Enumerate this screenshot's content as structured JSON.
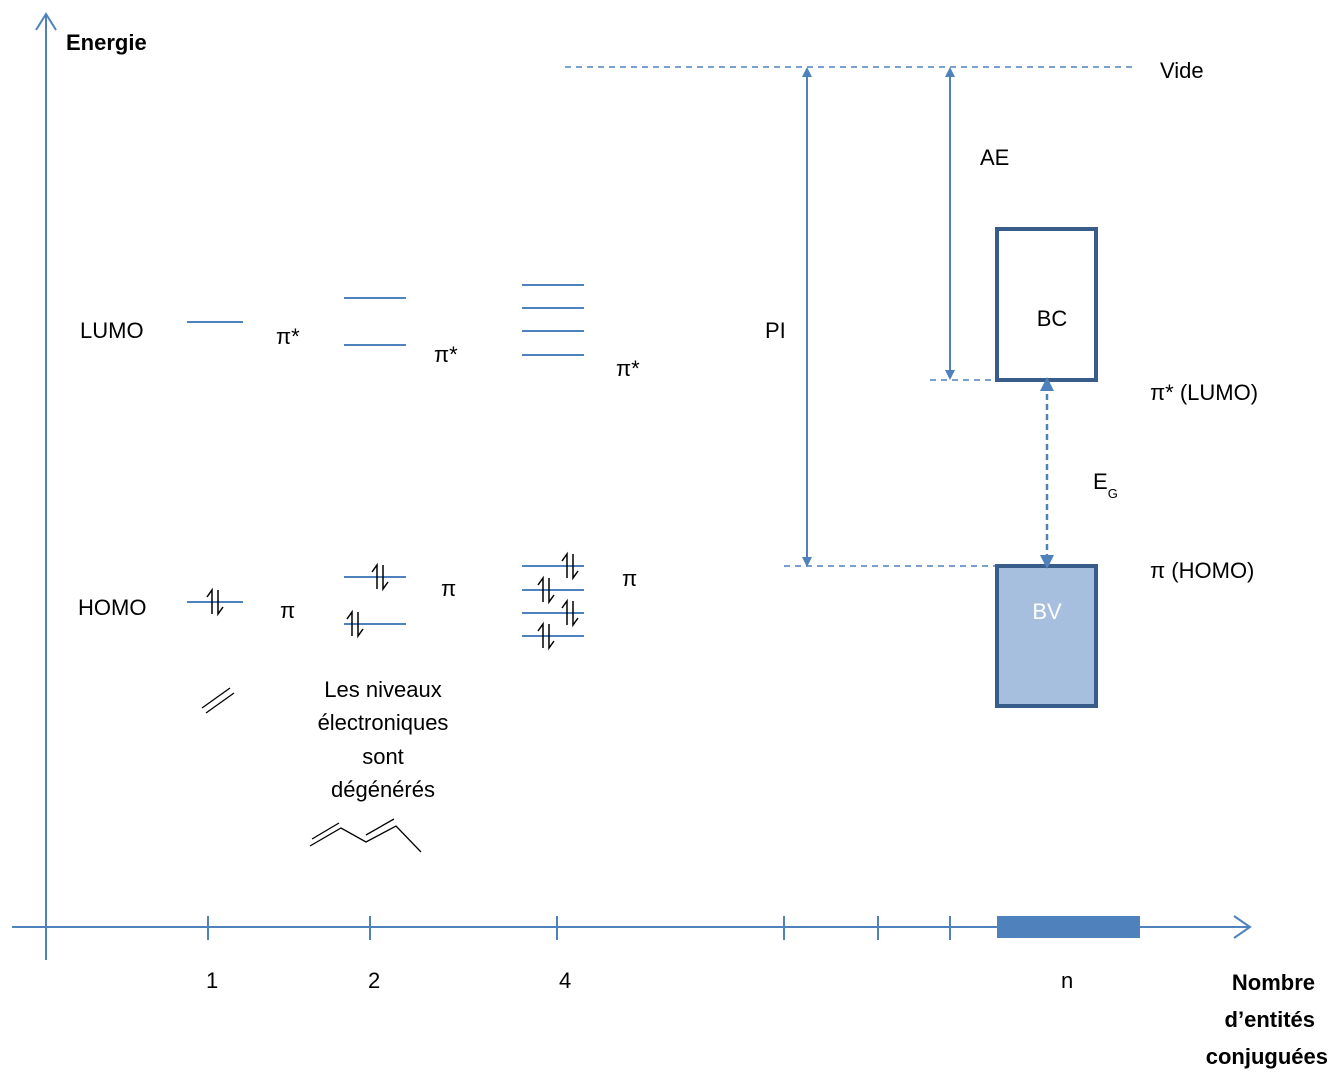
{
  "axis": {
    "y_label": "Energie",
    "x_label_lines": [
      "Nombre",
      "d’entités",
      "conjuguées"
    ],
    "ticks": [
      "1",
      "2",
      "4",
      "n"
    ]
  },
  "levels": {
    "lumo": "LUMO",
    "homo": "HOMO",
    "pi_star": "π*",
    "pi": "π"
  },
  "note_lines": [
    "Les niveaux",
    "électroniques",
    "sont",
    "dégénérés"
  ],
  "bands": {
    "vacuum": "Vide",
    "electron_affinity": "AE",
    "ionization_potential": "PI",
    "conduction_band": "BC",
    "valence_band": "BV",
    "lumo_edge": "π* (LUMO)",
    "homo_edge": "π (HOMO)",
    "gap_main": "E",
    "gap_sub": "G"
  },
  "colors": {
    "axis": "#4f81bd",
    "level": "#4f81bd",
    "band_border": "#385d8a",
    "valence_fill": "#a7bfde",
    "valence_text": "#ffffff"
  }
}
